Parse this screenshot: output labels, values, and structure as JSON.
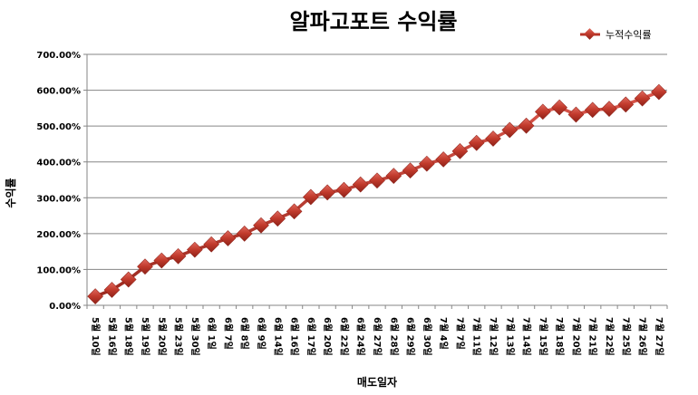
{
  "chart_data": {
    "type": "line",
    "title": "알파고포트 수익률",
    "xlabel": "매도일자",
    "ylabel": "수익률",
    "legend": "top-right",
    "grid": true,
    "ylim": [
      0,
      700
    ],
    "yticks": [
      "0.00%",
      "100.00%",
      "200.00%",
      "300.00%",
      "400.00%",
      "500.00%",
      "600.00%",
      "700.00%"
    ],
    "categories": [
      "5월 10일",
      "5월 16일",
      "5월 18일",
      "5월 19일",
      "5월 20일",
      "5월 23일",
      "5월 30일",
      "6월 1일",
      "6월 7일",
      "6월 8일",
      "6월 9일",
      "6월 14일",
      "6월 16일",
      "6월 17일",
      "6월 20일",
      "6월 22일",
      "6월 24일",
      "6월 27일",
      "6월 28일",
      "6월 29일",
      "6월 30일",
      "7월 4일",
      "7월 7일",
      "7월 11일",
      "7월 12일",
      "7월 13일",
      "7월 14일",
      "7월 15일",
      "7월 18일",
      "7월 20일",
      "7월 21일",
      "7월 22일",
      "7월 25일",
      "7월 26일",
      "7월 27일"
    ],
    "series": [
      {
        "name": "누적수익률",
        "color": "#c0392b",
        "values": [
          25,
          43,
          72,
          108,
          125,
          137,
          155,
          170,
          187,
          200,
          223,
          242,
          262,
          302,
          315,
          322,
          337,
          348,
          361,
          376,
          395,
          407,
          430,
          453,
          465,
          489,
          501,
          540,
          552,
          532,
          545,
          548,
          560,
          577,
          595
        ]
      }
    ]
  }
}
